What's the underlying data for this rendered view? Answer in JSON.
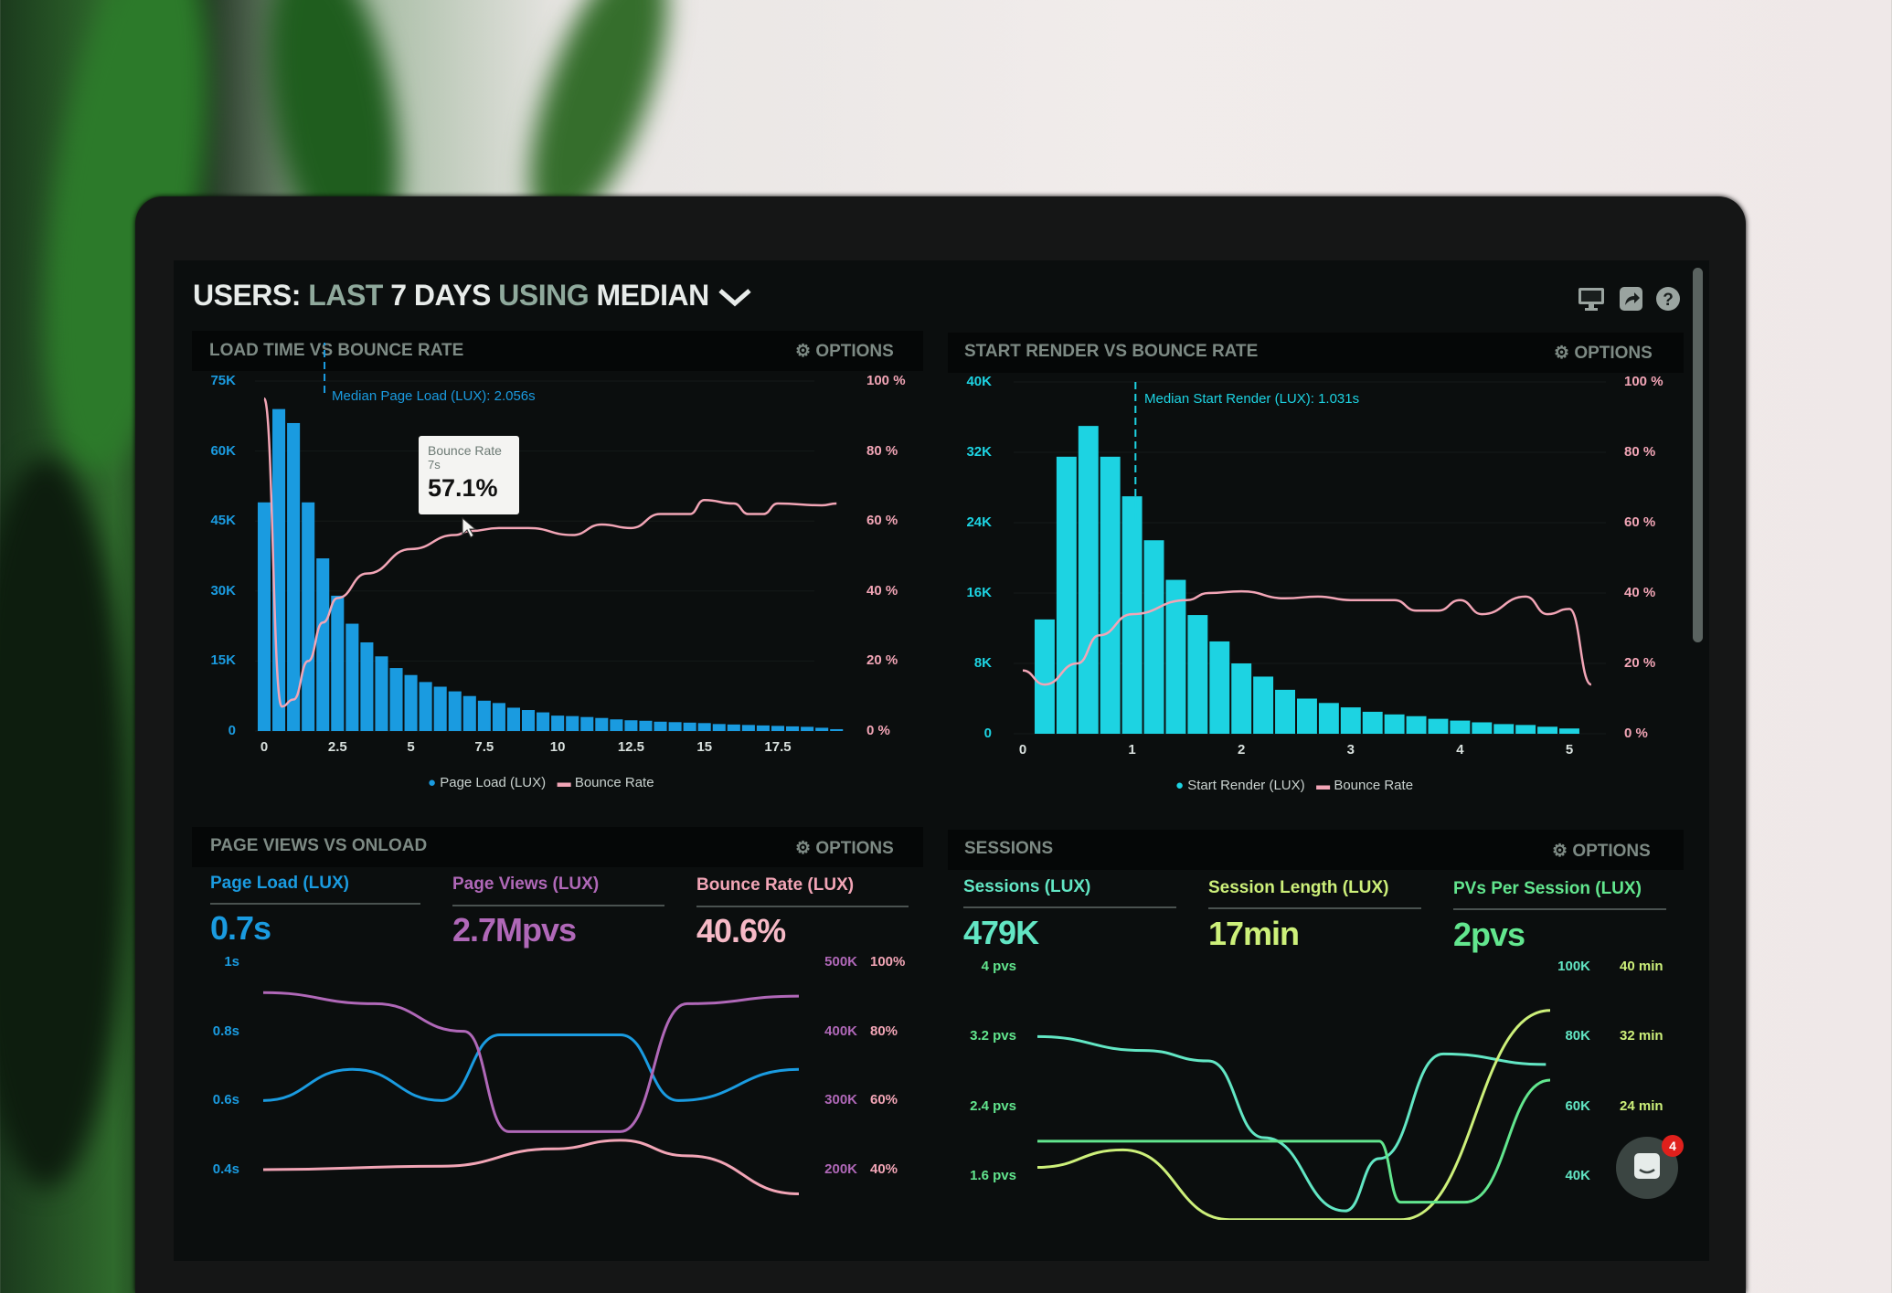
{
  "header": {
    "title_parts": [
      "USERS:",
      "LAST",
      "7 DAYS",
      "USING",
      "MEDIAN"
    ],
    "icons": [
      "monitor-icon",
      "share-icon",
      "help-icon"
    ]
  },
  "options_label": "OPTIONS",
  "panels": {
    "load_time": {
      "title": "LOAD TIME VS BOUNCE RATE",
      "median_label": "Median Page Load (LUX): 2.056s",
      "tooltip": {
        "title": "Bounce Rate",
        "x": "7s",
        "value": "57.1%"
      },
      "legend": [
        "Page Load (LUX)",
        "Bounce Rate"
      ]
    },
    "start_render": {
      "title": "START RENDER VS BOUNCE RATE",
      "median_label": "Median Start Render (LUX): 1.031s",
      "legend": [
        "Start Render (LUX)",
        "Bounce Rate"
      ]
    },
    "page_views": {
      "title": "PAGE VIEWS VS ONLOAD",
      "metrics": [
        {
          "label": "Page Load (LUX)",
          "value": "0.7s"
        },
        {
          "label": "Page Views (LUX)",
          "value": "2.7Mpvs"
        },
        {
          "label": "Bounce Rate (LUX)",
          "value": "40.6%"
        }
      ]
    },
    "sessions": {
      "title": "SESSIONS",
      "metrics": [
        {
          "label": "Sessions (LUX)",
          "value": "479K"
        },
        {
          "label": "Session Length (LUX)",
          "value": "17min"
        },
        {
          "label": "PVs Per Session (LUX)",
          "value": "2pvs"
        }
      ]
    }
  },
  "chat": {
    "badge_count": "4"
  },
  "colors": {
    "blue": "#1a9be0",
    "cyan": "#1dd3e2",
    "pink": "#f2a5b6",
    "purple": "#b068b8",
    "teal": "#62e6c4",
    "yellow_green": "#cdf07a",
    "green": "#62e68e"
  },
  "chart_data": [
    {
      "type": "bar+line",
      "title": "LOAD TIME VS BOUNCE RATE",
      "x_ticks": [
        "0",
        "2.5",
        "5",
        "7.5",
        "10",
        "12.5",
        "15",
        "17.5"
      ],
      "xlim": [
        0,
        20
      ],
      "y_left_ticks": [
        "0",
        "15K",
        "30K",
        "45K",
        "60K",
        "75K"
      ],
      "ylim_left": [
        0,
        75000
      ],
      "y_right_ticks": [
        "0 %",
        "20 %",
        "40 %",
        "60 %",
        "80 %",
        "100 %"
      ],
      "ylim_right": [
        0,
        100
      ],
      "median_x": 2.056,
      "bars": {
        "name": "Page Load (LUX)",
        "bin_width": 0.5,
        "x": [
          0,
          0.5,
          1,
          1.5,
          2,
          2.5,
          3,
          3.5,
          4,
          4.5,
          5,
          5.5,
          6,
          6.5,
          7,
          7.5,
          8,
          8.5,
          9,
          9.5,
          10,
          10.5,
          11,
          11.5,
          12,
          12.5,
          13,
          13.5,
          14,
          14.5,
          15,
          15.5,
          16,
          16.5,
          17,
          17.5,
          18,
          18.5,
          19,
          19.5
        ],
        "values": [
          49000,
          69000,
          66000,
          49000,
          37000,
          29000,
          23000,
          19000,
          16000,
          13500,
          12000,
          10500,
          9500,
          8500,
          7500,
          6500,
          6000,
          5000,
          4500,
          4000,
          3300,
          3200,
          3000,
          2800,
          2500,
          2300,
          2200,
          2000,
          1900,
          1800,
          1700,
          1500,
          1400,
          1300,
          1200,
          1100,
          1000,
          900,
          700,
          400
        ]
      },
      "line": {
        "name": "Bounce Rate",
        "x": [
          0,
          0.6,
          1,
          1.5,
          2,
          2.5,
          3.5,
          5,
          6.5,
          7,
          8,
          9,
          10.5,
          11.5,
          12.5,
          13.5,
          14.5,
          15,
          16,
          16.5,
          17,
          17.5,
          19,
          19.5
        ],
        "values": [
          95,
          7,
          9,
          20,
          31,
          38,
          45,
          52,
          56,
          57.1,
          58,
          58,
          56,
          59,
          58,
          62,
          62,
          66,
          65,
          62,
          62,
          65,
          64.5,
          65
        ]
      }
    },
    {
      "type": "bar+line",
      "title": "START RENDER VS BOUNCE RATE",
      "x_ticks": [
        "0",
        "1",
        "2",
        "3",
        "4",
        "5"
      ],
      "xlim": [
        0,
        5.25
      ],
      "y_left_ticks": [
        "0",
        "8K",
        "16K",
        "24K",
        "32K",
        "40K"
      ],
      "ylim_left": [
        0,
        40000
      ],
      "y_right_ticks": [
        "0 %",
        "20 %",
        "40 %",
        "60 %",
        "80 %",
        "100 %"
      ],
      "ylim_right": [
        0,
        100
      ],
      "median_x": 1.031,
      "bars": {
        "name": "Start Render (LUX)",
        "bin_width": 0.2,
        "x": [
          0.2,
          0.4,
          0.6,
          0.8,
          1,
          1.2,
          1.4,
          1.6,
          1.8,
          2,
          2.2,
          2.4,
          2.6,
          2.8,
          3,
          3.2,
          3.4,
          3.6,
          3.8,
          4,
          4.2,
          4.4,
          4.6,
          4.8,
          5
        ],
        "values": [
          13000,
          31500,
          35000,
          31500,
          27000,
          22000,
          17500,
          13500,
          10500,
          8000,
          6500,
          5000,
          4000,
          3500,
          3000,
          2500,
          2200,
          2000,
          1700,
          1500,
          1300,
          1100,
          1000,
          800,
          600
        ]
      },
      "line": {
        "name": "Bounce Rate",
        "x": [
          0,
          0.2,
          0.5,
          0.7,
          1,
          1.5,
          1.7,
          2,
          2.4,
          2.7,
          3,
          3.4,
          3.6,
          3.8,
          4,
          4.2,
          4.6,
          4.8,
          5,
          5.2
        ],
        "values": [
          18,
          14,
          20,
          28,
          34,
          38,
          40,
          40.5,
          38.5,
          39,
          38,
          38,
          35,
          35,
          38,
          34,
          39,
          34,
          35.5,
          14
        ]
      }
    },
    {
      "type": "line",
      "title": "PAGE VIEWS VS ONLOAD",
      "xlim": [
        0,
        12
      ],
      "y_left_ticks": [
        "0.4s",
        "0.6s",
        "0.8s",
        "1s"
      ],
      "ylim_left": [
        0.4,
        1.0
      ],
      "y_right1_ticks": [
        "200K",
        "300K",
        "400K",
        "500K"
      ],
      "ylim_right1": [
        200,
        500
      ],
      "y_right2_ticks": [
        "40%",
        "60%",
        "80%",
        "100%"
      ],
      "ylim_right2": [
        40,
        100
      ],
      "series": [
        {
          "name": "Page Load (LUX)",
          "axis": "left",
          "color": "#1a9be0",
          "x": [
            0,
            2,
            4,
            5.3,
            8,
            9.3,
            12
          ],
          "values": [
            0.6,
            0.69,
            0.6,
            0.79,
            0.79,
            0.6,
            0.69
          ]
        },
        {
          "name": "Page Views (LUX)",
          "axis": "right1",
          "color": "#b068b8",
          "x": [
            0,
            2.5,
            4.5,
            5.5,
            8,
            9.5,
            12
          ],
          "values": [
            456,
            440,
            400,
            255,
            255,
            440,
            451
          ]
        },
        {
          "name": "Bounce Rate (LUX)",
          "axis": "right2",
          "color": "#f2a5b6",
          "x": [
            0,
            4,
            6.5,
            8,
            9.5,
            12
          ],
          "values": [
            40,
            41,
            46,
            48.5,
            44,
            33
          ]
        }
      ]
    },
    {
      "type": "line",
      "title": "SESSIONS",
      "xlim": [
        0,
        12
      ],
      "y_left_ticks": [
        "1.6 pvs",
        "2.4 pvs",
        "3.2 pvs",
        "4 pvs"
      ],
      "ylim_left": [
        1.6,
        4
      ],
      "y_right1_ticks": [
        "40K",
        "60K",
        "80K",
        "100K"
      ],
      "ylim_right1": [
        40,
        100
      ],
      "y_right2_ticks": [
        "",
        "24 min",
        "32 min",
        "40 min"
      ],
      "ylim_right2": [
        16,
        40
      ],
      "series": [
        {
          "name": "Sessions (LUX)",
          "axis": "right1",
          "color": "#62e6c4",
          "x": [
            0,
            2.5,
            4,
            5.3,
            7.2,
            8,
            9.5,
            11.9
          ],
          "values": [
            80,
            76,
            73,
            51,
            30,
            45,
            75,
            72
          ]
        },
        {
          "name": "Session Length (LUX)",
          "axis": "right2",
          "color": "#cdf07a",
          "x": [
            0,
            2,
            4.5,
            8.5,
            12
          ],
          "values": [
            17,
            19,
            11,
            11,
            35
          ]
        },
        {
          "name": "PVs Per Session (LUX)",
          "axis": "left",
          "color": "#62e68e",
          "x": [
            0,
            8,
            8.5,
            10,
            12
          ],
          "values": [
            2.0,
            2.0,
            1.3,
            1.3,
            2.7
          ]
        }
      ]
    }
  ]
}
